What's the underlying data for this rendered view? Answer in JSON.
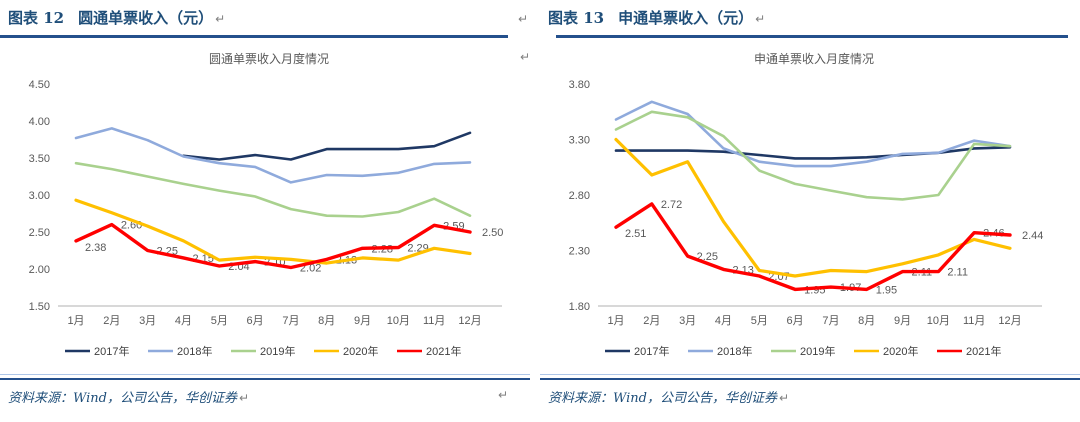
{
  "panels": [
    {
      "figure_label": "图表 12",
      "figure_title": "圆通单票收入（元）",
      "return_mark": "↵",
      "source_text": "资料来源：Wind，公司公告，华创证券"
    },
    {
      "figure_label": "图表 13",
      "figure_title": "申通单票收入（元）",
      "return_mark": "↵",
      "source_text": "资料来源：Wind，公司公告，华创证券"
    }
  ],
  "chart_data": [
    {
      "type": "line",
      "title": "圆通单票收入月度情况",
      "categories": [
        "1月",
        "2月",
        "3月",
        "4月",
        "5月",
        "6月",
        "7月",
        "8月",
        "9月",
        "10月",
        "11月",
        "12月"
      ],
      "ylim": [
        1.5,
        4.5
      ],
      "yticks": [
        "4.50",
        "4.00",
        "3.50",
        "3.00",
        "2.50",
        "2.00",
        "1.50"
      ],
      "grid": false,
      "legend_position": "bottom",
      "axis_color": "#C0C0C0",
      "label_color": "#595959",
      "series": [
        {
          "name": "2017年",
          "color": "#1F3864",
          "values": [
            null,
            null,
            null,
            3.53,
            3.48,
            3.54,
            3.48,
            3.62,
            3.62,
            3.62,
            3.66,
            3.84
          ]
        },
        {
          "name": "2018年",
          "color": "#8FAADC",
          "values": [
            3.77,
            3.9,
            3.74,
            3.52,
            3.43,
            3.38,
            3.17,
            3.27,
            3.26,
            3.3,
            3.42,
            3.44
          ]
        },
        {
          "name": "2019年",
          "color": "#A9D18E",
          "values": [
            3.43,
            3.35,
            3.25,
            3.15,
            3.06,
            2.98,
            2.81,
            2.72,
            2.71,
            2.77,
            2.95,
            2.72
          ]
        },
        {
          "name": "2020年",
          "color": "#FFC000",
          "values": [
            2.93,
            2.76,
            2.58,
            2.38,
            2.12,
            2.16,
            2.13,
            2.08,
            2.15,
            2.12,
            2.28,
            2.21
          ]
        },
        {
          "name": "2021年",
          "color": "#FF0000",
          "values": [
            2.38,
            2.6,
            2.25,
            2.15,
            2.04,
            2.1,
            2.02,
            2.13,
            2.28,
            2.29,
            2.59,
            2.5
          ],
          "data_labels": [
            "2.38",
            "2.60",
            "2.25",
            "2.15",
            "2.04",
            "2.10",
            "2.02",
            "2.13",
            "2.28",
            "2.29",
            "2.59",
            "2.50"
          ]
        }
      ]
    },
    {
      "type": "line",
      "title": "申通单票收入月度情况",
      "categories": [
        "1月",
        "2月",
        "3月",
        "4月",
        "5月",
        "6月",
        "7月",
        "8月",
        "9月",
        "10月",
        "11月",
        "12月"
      ],
      "ylim": [
        1.8,
        3.8
      ],
      "yticks": [
        "3.80",
        "3.30",
        "2.80",
        "2.30",
        "1.80"
      ],
      "grid": false,
      "legend_position": "bottom",
      "axis_color": "#C0C0C0",
      "label_color": "#595959",
      "series": [
        {
          "name": "2017年",
          "color": "#1F3864",
          "values": [
            3.2,
            3.2,
            3.2,
            3.19,
            3.16,
            3.13,
            3.13,
            3.14,
            3.16,
            3.18,
            3.22,
            3.23
          ]
        },
        {
          "name": "2018年",
          "color": "#8FAADC",
          "values": [
            3.48,
            3.64,
            3.53,
            3.22,
            3.1,
            3.06,
            3.06,
            3.1,
            3.17,
            3.18,
            3.29,
            3.24
          ]
        },
        {
          "name": "2019年",
          "color": "#A9D18E",
          "values": [
            3.39,
            3.55,
            3.5,
            3.33,
            3.02,
            2.9,
            2.84,
            2.78,
            2.76,
            2.8,
            3.26,
            3.24
          ]
        },
        {
          "name": "2020年",
          "color": "#FFC000",
          "values": [
            3.3,
            2.98,
            3.1,
            2.56,
            2.12,
            2.07,
            2.12,
            2.11,
            2.18,
            2.26,
            2.4,
            2.32
          ]
        },
        {
          "name": "2021年",
          "color": "#FF0000",
          "values": [
            2.51,
            2.72,
            2.25,
            2.13,
            2.07,
            1.95,
            1.97,
            1.95,
            2.11,
            2.11,
            2.46,
            2.44
          ],
          "data_labels": [
            "2.51",
            "2.72",
            "2.25",
            "2.13",
            "2.07",
            "1.95",
            "1.97",
            "1.95",
            "2.11",
            "2.11",
            "2.46",
            "2.44"
          ]
        }
      ]
    }
  ]
}
